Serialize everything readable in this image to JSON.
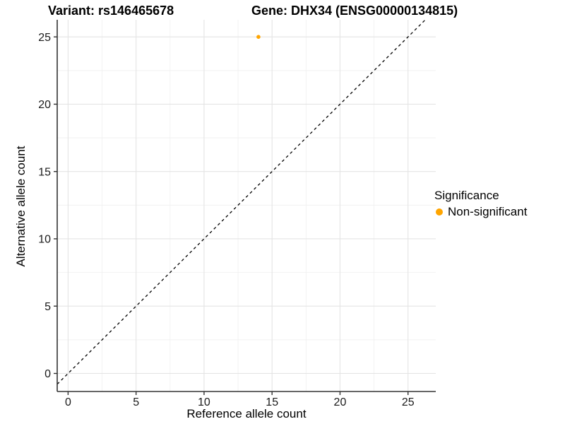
{
  "window": {
    "background": "#FFFFFF"
  },
  "chart_data": {
    "type": "scatter",
    "titles": {
      "left": "Variant: rs146465678",
      "right": "Gene: DHX34 (ENSG00000134815)"
    },
    "xlabel": "Reference allele count",
    "ylabel": "Alternative allele count",
    "x_ticks": [
      0,
      5,
      10,
      15,
      20,
      25
    ],
    "y_ticks": [
      0,
      5,
      10,
      15,
      20,
      25
    ],
    "x_minor": [
      2.5,
      7.5,
      12.5,
      17.5,
      22.5
    ],
    "y_minor": [
      2.5,
      7.5,
      12.5,
      17.5,
      22.5
    ],
    "xlim": [
      -0.8,
      27.04
    ],
    "ylim": [
      -1.34,
      26.27
    ],
    "grid": true,
    "points": [
      {
        "x": 14,
        "y": 25,
        "significance": "Non-significant"
      }
    ],
    "reference_line": {
      "type": "identity",
      "slope": 1,
      "intercept": 0,
      "style": "dashed"
    },
    "legend": {
      "title": "Significance",
      "position": "right",
      "items": [
        {
          "label": "Non-significant",
          "color": "#FFA500"
        }
      ]
    },
    "colors": {
      "point": "#FFA500",
      "grid_major": "#E4E4E4",
      "grid_minor": "#EFEFEF",
      "axis_line": "#333333",
      "tick_mark": "#333333",
      "tick_text": "#1A1A1A",
      "reference_line": "#000000"
    }
  }
}
